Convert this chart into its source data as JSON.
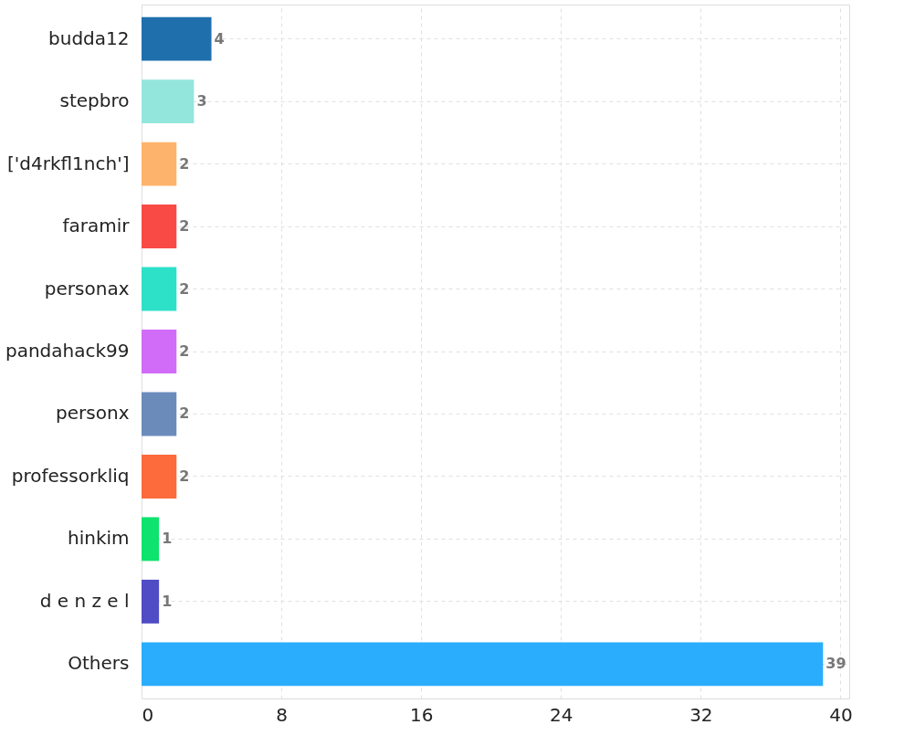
{
  "chart_data": {
    "type": "bar",
    "orientation": "horizontal",
    "categories": [
      "budda12",
      "stepbro",
      "['d4rkfl1nch']",
      "faramir",
      "personax",
      "pandahack99",
      "personx",
      "professorkliq",
      "hinkim",
      "d e n z e l",
      "Others"
    ],
    "values": [
      4,
      3,
      2,
      2,
      2,
      2,
      2,
      2,
      1,
      1,
      39
    ],
    "colors": [
      "#1f6fad",
      "#93e6dc",
      "#fdb36b",
      "#f94a46",
      "#2de0c8",
      "#d06cf7",
      "#6b8bbb",
      "#fd6a3b",
      "#0ee36d",
      "#4f4cc5",
      "#2aadfc"
    ],
    "xlim": [
      0,
      40.5
    ],
    "xticks": [
      0,
      8,
      16,
      24,
      32,
      40
    ],
    "grid": true,
    "data_labels": true,
    "legend": false
  }
}
